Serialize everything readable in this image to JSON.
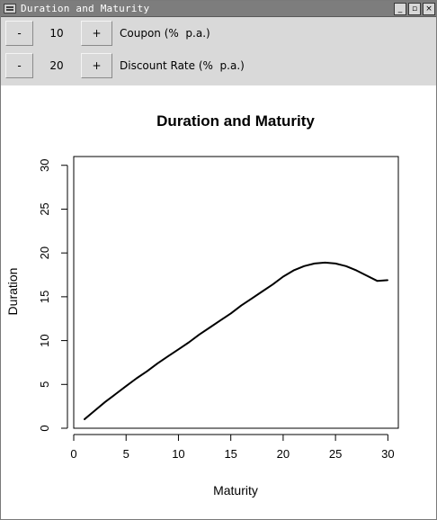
{
  "window": {
    "title": "Duration and Maturity"
  },
  "window_buttons": {
    "minimize": "_",
    "maximize": "▫",
    "close": "×"
  },
  "controls": [
    {
      "minus_label": "-",
      "value": "10",
      "plus_label": "+",
      "label": "Coupon (%  p.a.)"
    },
    {
      "minus_label": "-",
      "value": "20",
      "plus_label": "+",
      "label": "Discount Rate (%  p.a.)"
    }
  ],
  "chart_data": {
    "type": "line",
    "title": "Duration and Maturity",
    "xlabel": "Maturity",
    "ylabel": "Duration",
    "xlim": [
      0,
      31
    ],
    "ylim": [
      0,
      31
    ],
    "xticks": [
      0,
      5,
      10,
      15,
      20,
      25,
      30
    ],
    "yticks": [
      0,
      5,
      10,
      15,
      20,
      25,
      30
    ],
    "grid": false,
    "series": [
      {
        "color": "#000000",
        "x": [
          1,
          2,
          3,
          4,
          5,
          6,
          7,
          8,
          9,
          10,
          11,
          12,
          13,
          14,
          15,
          16,
          17,
          18,
          19,
          20,
          21,
          22,
          23,
          24,
          25,
          26,
          27,
          28,
          29,
          30
        ],
        "y": [
          1.0,
          2.0,
          3.0,
          3.9,
          4.8,
          5.7,
          6.5,
          7.4,
          8.2,
          9.0,
          9.8,
          10.7,
          11.5,
          12.3,
          13.1,
          14.0,
          14.8,
          15.6,
          16.4,
          17.3,
          18.0,
          18.5,
          18.8,
          18.9,
          18.8,
          18.5,
          18.0,
          17.4,
          16.8,
          16.9
        ]
      }
    ]
  }
}
